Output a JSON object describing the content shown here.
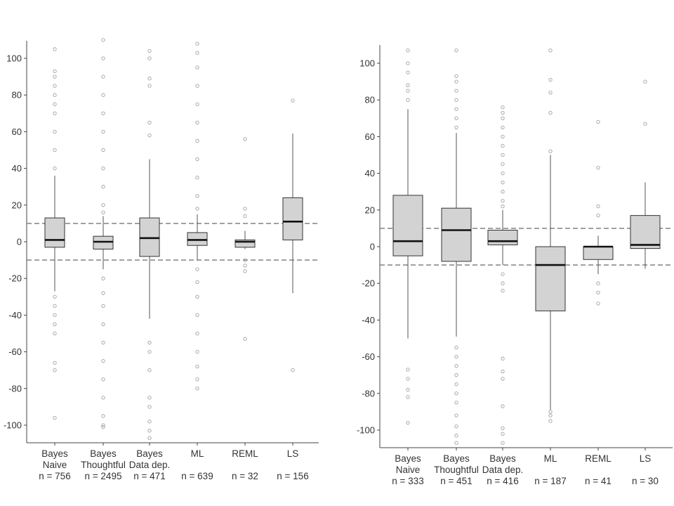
{
  "chart_data": [
    {
      "type": "box",
      "yticks": [
        -100,
        -80,
        -60,
        -40,
        -20,
        0,
        20,
        40,
        60,
        80,
        100
      ],
      "ylim": [
        -110,
        110
      ],
      "reference_lines": [
        10,
        -10
      ],
      "grid": false,
      "box_fill": "#d3d3d3",
      "categories": [
        {
          "line1": "Bayes",
          "line2": "Naive",
          "n_label": "n = 756",
          "q1": -3,
          "median": 1,
          "q3": 13,
          "whisker_low": -27,
          "whisker_high": 36,
          "outliers": [
            -96,
            -70,
            -66,
            -50,
            -45,
            -40,
            -35,
            -30,
            40,
            50,
            60,
            70,
            75,
            80,
            85,
            90,
            93,
            105
          ]
        },
        {
          "line1": "Bayes",
          "line2": "Thoughtful",
          "n_label": "n = 2495",
          "q1": -4,
          "median": 0,
          "q3": 3,
          "whisker_low": -15,
          "whisker_high": 14,
          "outliers": [
            -101,
            -100,
            -95,
            -85,
            -75,
            -65,
            -55,
            -45,
            -35,
            -28,
            -20,
            16,
            20,
            30,
            40,
            50,
            60,
            70,
            80,
            90,
            100,
            110
          ]
        },
        {
          "line1": "Bayes",
          "line2": "Data dep.",
          "n_label": "n = 471",
          "q1": -8,
          "median": 2,
          "q3": 13,
          "whisker_low": -42,
          "whisker_high": 45,
          "outliers": [
            -107,
            -103,
            -98,
            -90,
            -85,
            -70,
            -60,
            -55,
            58,
            65,
            85,
            89,
            100,
            104
          ]
        },
        {
          "line1": "ML",
          "line2": "",
          "n_label": "n = 639",
          "q1": -2,
          "median": 1,
          "q3": 5,
          "whisker_low": -10,
          "whisker_high": 15,
          "outliers": [
            -80,
            -75,
            -68,
            -60,
            -50,
            -40,
            -30,
            -22,
            -15,
            18,
            25,
            35,
            45,
            55,
            65,
            75,
            85,
            95,
            103,
            108
          ]
        },
        {
          "line1": "REML",
          "line2": "",
          "n_label": "n = 32",
          "q1": -3,
          "median": 0,
          "q3": 1,
          "whisker_low": -4,
          "whisker_high": 6,
          "outliers": [
            -53,
            -16,
            -13,
            -10,
            14,
            18,
            56
          ]
        },
        {
          "line1": "LS",
          "line2": "",
          "n_label": "n = 156",
          "q1": 1,
          "median": 11,
          "q3": 24,
          "whisker_low": -28,
          "whisker_high": 59,
          "outliers": [
            -70,
            77
          ]
        }
      ]
    },
    {
      "type": "box",
      "yticks": [
        -100,
        -80,
        -60,
        -40,
        -20,
        0,
        20,
        40,
        60,
        80,
        100
      ],
      "ylim": [
        -110,
        110
      ],
      "reference_lines": [
        10,
        -10
      ],
      "grid": false,
      "box_fill": "#d3d3d3",
      "categories": [
        {
          "line1": "Bayes",
          "line2": "Naive",
          "n_label": "n = 333",
          "q1": -5,
          "median": 3,
          "q3": 28,
          "whisker_low": -50,
          "whisker_high": 75,
          "outliers": [
            -96,
            -82,
            -78,
            -72,
            -67,
            80,
            85,
            88,
            95,
            100,
            107
          ]
        },
        {
          "line1": "Bayes",
          "line2": "Thoughtful",
          "n_label": "n = 451",
          "q1": -8,
          "median": 9,
          "q3": 21,
          "whisker_low": -49,
          "whisker_high": 62,
          "outliers": [
            -107,
            -103,
            -98,
            -92,
            -85,
            -80,
            -75,
            -70,
            -65,
            -60,
            -55,
            65,
            70,
            75,
            80,
            85,
            90,
            93,
            107
          ]
        },
        {
          "line1": "Bayes",
          "line2": "Data dep.",
          "n_label": "n = 416",
          "q1": 1,
          "median": 3,
          "q3": 9,
          "whisker_low": -10,
          "whisker_high": 20,
          "outliers": [
            -107,
            -102,
            -99,
            -87,
            -72,
            -68,
            -61,
            -24,
            -20,
            -15,
            22,
            25,
            30,
            35,
            40,
            45,
            50,
            55,
            60,
            65,
            70,
            73,
            76
          ]
        },
        {
          "line1": "ML",
          "line2": "",
          "n_label": "n = 187",
          "q1": -35,
          "median": -10,
          "q3": 0,
          "whisker_low": -89,
          "whisker_high": 50,
          "outliers": [
            -95,
            -92,
            -90,
            52,
            73,
            84,
            91,
            107
          ]
        },
        {
          "line1": "REML",
          "line2": "",
          "n_label": "n = 41",
          "q1": -7,
          "median": 0,
          "q3": 0,
          "whisker_low": -15,
          "whisker_high": 6,
          "outliers": [
            -31,
            -25,
            -20,
            17,
            22,
            43,
            68
          ]
        },
        {
          "line1": "LS",
          "line2": "",
          "n_label": "n = 30",
          "q1": -1,
          "median": 1,
          "q3": 17,
          "whisker_low": -12,
          "whisker_high": 35,
          "outliers": [
            67,
            90
          ]
        }
      ]
    }
  ]
}
